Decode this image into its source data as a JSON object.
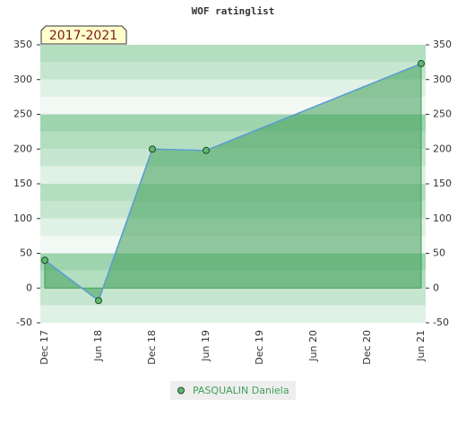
{
  "chart_data": {
    "type": "area",
    "title": "WOF ratinglist",
    "badge": "2017-2021",
    "categories": [
      "Dec 17",
      "Jun 18",
      "Dec 18",
      "Jun 19",
      "Dec 19",
      "Jun 20",
      "Dec 20",
      "Jun 21"
    ],
    "series": [
      {
        "name": "PASQUALIN Daniela",
        "color": "#3f9f5a",
        "x": [
          "Dec 17",
          "Jun 18",
          "Dec 18",
          "Jun 19",
          "Jun 21"
        ],
        "values": [
          40,
          -18,
          200,
          198,
          323
        ]
      }
    ],
    "ylim": [
      -50,
      350
    ],
    "yticks": [
      -50,
      0,
      50,
      100,
      150,
      200,
      250,
      300,
      350
    ],
    "y2lim": [
      -50,
      350
    ],
    "y2ticks": [
      -50,
      0,
      50,
      100,
      150,
      200,
      250,
      300,
      350
    ],
    "legend": "bottom"
  }
}
